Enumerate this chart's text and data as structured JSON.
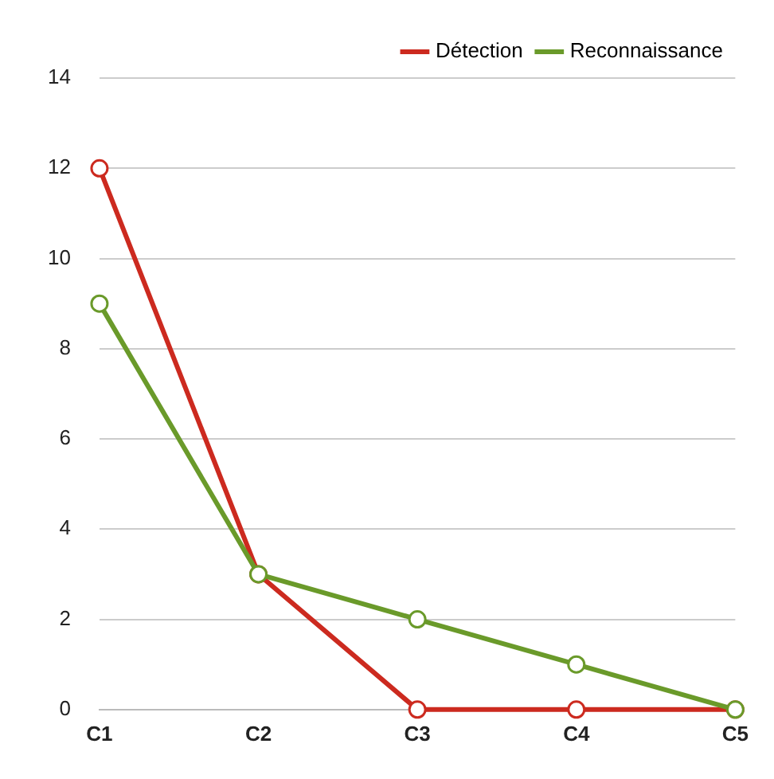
{
  "chart_data": {
    "type": "line",
    "categories": [
      "C1",
      "C2",
      "C3",
      "C4",
      "C5"
    ],
    "series": [
      {
        "name": "Détection",
        "color": "#cc2a1f",
        "values": [
          12,
          3,
          0,
          0,
          0
        ]
      },
      {
        "name": "Reconnaissance",
        "color": "#6a9a2a",
        "values": [
          9,
          3,
          2,
          1,
          0
        ]
      }
    ],
    "ylim": [
      0,
      14
    ],
    "yticks": [
      0,
      2,
      4,
      6,
      8,
      10,
      12,
      14
    ],
    "grid": "y",
    "legend": "top right",
    "marker": "circle",
    "line_style": "solid"
  }
}
